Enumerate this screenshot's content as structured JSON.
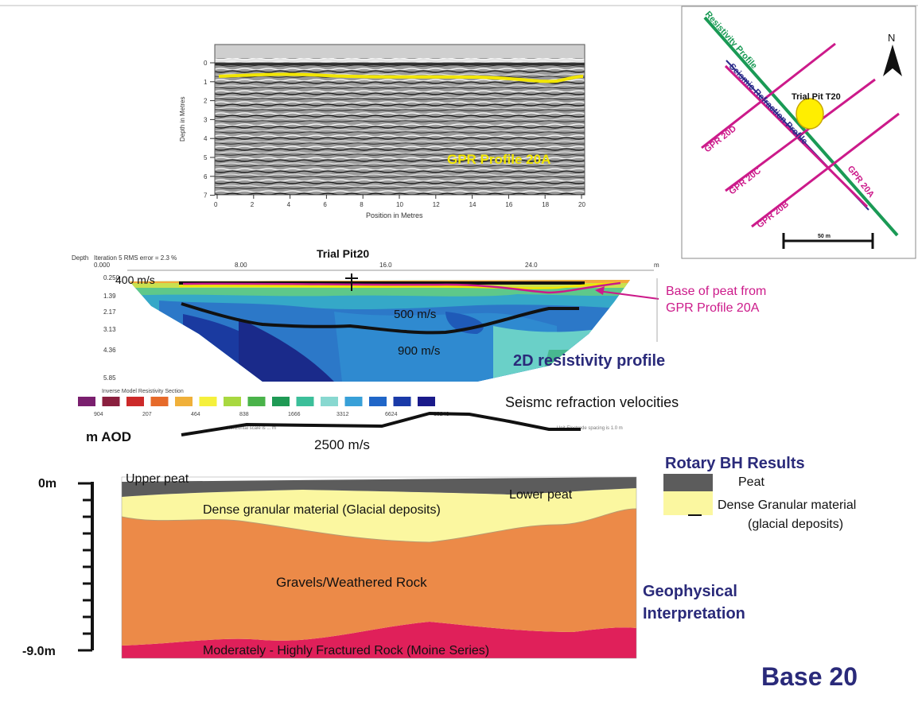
{
  "gpr": {
    "title": "GPR Profile 20A",
    "y_axis_label": "Depth in Metres",
    "x_axis_label": "Position in Metres",
    "y_ticks": [
      "0",
      "1",
      "2",
      "3",
      "4",
      "5",
      "6",
      "7"
    ],
    "x_ticks": [
      "0",
      "2",
      "4",
      "6",
      "8",
      "10",
      "12",
      "14",
      "16",
      "18",
      "20"
    ],
    "horizon_color": "#f2e600"
  },
  "map": {
    "north_label": "N",
    "resistivity_label": "Resistivity Profile",
    "seismic_label": "Seismic Refraction Profile",
    "trial_pit_label": "Trial Pit T20",
    "gpr_lines": [
      "GPR 20D",
      "GPR 20C",
      "GPR 20B",
      "GPR 20A"
    ],
    "scale_label": "50 m",
    "colors": {
      "gpr": "#cc1a8a",
      "resistivity": "#1a9a55",
      "seismic": "#2a2a8a",
      "pit": "#ffee00"
    }
  },
  "resistivity": {
    "depth_label": "Depth",
    "iteration_text": "Iteration 5 RMS error = 2.3 %",
    "trial_pit_label": "Trial Pit20",
    "x_ticks": [
      "0.000",
      "8.00",
      "16.0",
      "24.0"
    ],
    "x_unit": "m",
    "depth_ticks": [
      "0.250",
      "1.39",
      "2.17",
      "3.13",
      "4.36",
      "5.85"
    ],
    "velocity_labels": [
      "400 m/s",
      "500 m/s",
      "900 m/s"
    ],
    "base_of_peat_label_line1": "Base of peat from",
    "base_of_peat_label_line2": "GPR Profile 20A",
    "profile_title": "2D resistivity profile",
    "legend_title": "Inverse Model Resistivity Section",
    "legend_values": [
      "904",
      "207",
      "464",
      "838",
      "1666",
      "3312",
      "6624",
      "13248"
    ],
    "legend_colors": [
      "#7a1f6e",
      "#8a1f3e",
      "#cc2a2a",
      "#e66a2a",
      "#f0b03a",
      "#f5f03c",
      "#a8d840",
      "#4ab34a",
      "#1f9a55",
      "#3cbf9a",
      "#88d8d0",
      "#38a0d8",
      "#2066c8",
      "#1a3aa8",
      "#1a1a8a"
    ],
    "electrode_spacing": "Unit Electrode spacing is 1.0 m",
    "horizontal_scale": "Horizontal scale is ... m"
  },
  "seismic": {
    "title": "Seismc refraction velocities",
    "velocity": "2500 m/s",
    "aod_label": "m AOD"
  },
  "interpretation": {
    "scale_top": "0m",
    "scale_bottom": "-9.0m",
    "upper_peat": "Upper peat",
    "lower_peat": "Lower peat",
    "glacial": "Dense granular material (Glacial deposits)",
    "gravels": "Gravels/Weathered Rock",
    "fractured": "Moderately - Highly Fractured Rock (Moine Series)",
    "title_line1": "Geophysical",
    "title_line2": "Interpretation",
    "colors": {
      "peat": "#5c5c5c",
      "glacial": "#fbf7a0",
      "gravels": "#ec8a48",
      "fractured": "#e0205a"
    }
  },
  "rotary": {
    "title": "Rotary BH Results",
    "peat_label": "Peat",
    "granular_line1": "Dense Granular material",
    "granular_line2": "(glacial deposits)"
  },
  "footer": {
    "base_label": "Base 20"
  },
  "theme": {
    "navy": "#2a2a7a",
    "magenta": "#cc1a8a"
  }
}
